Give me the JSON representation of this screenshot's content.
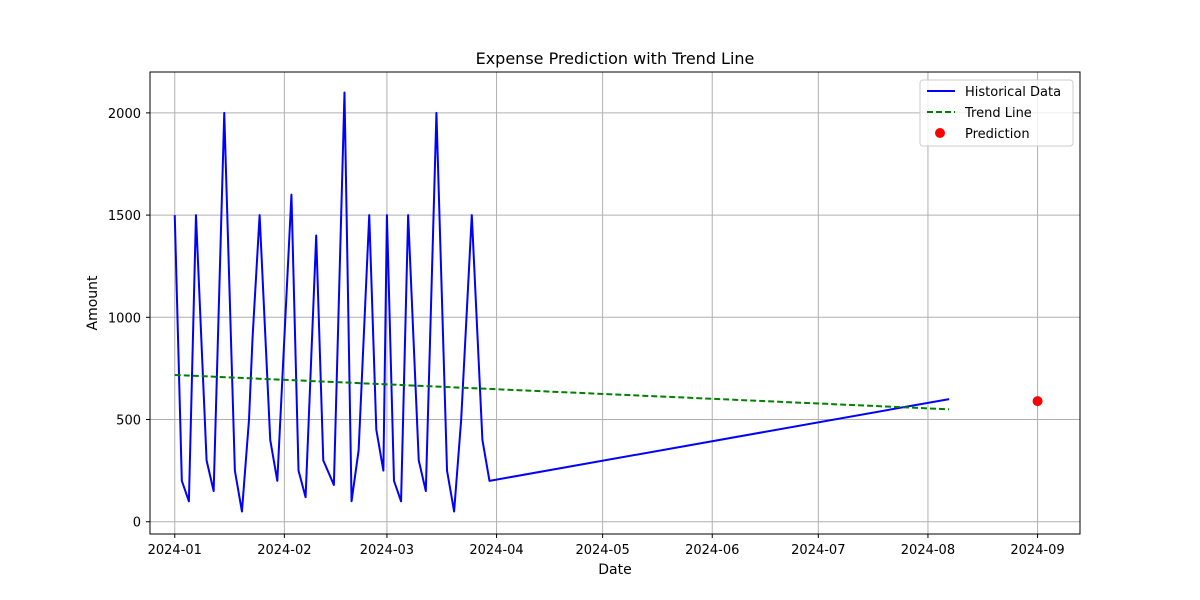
{
  "chart_data": {
    "type": "line",
    "title": "Expense Prediction with Trend Line",
    "xlabel": "Date",
    "ylabel": "Amount",
    "x_ticks": [
      "2024-01",
      "2024-02",
      "2024-03",
      "2024-04",
      "2024-05",
      "2024-06",
      "2024-07",
      "2024-08",
      "2024-09"
    ],
    "y_ticks": [
      0,
      500,
      1000,
      1500,
      2000
    ],
    "xlim": [
      "2023-12-25",
      "2024-09-13"
    ],
    "ylim": [
      -60,
      2200
    ],
    "grid": true,
    "legend_position": "top-right",
    "series": [
      {
        "name": "Historical Data",
        "style": "solid line",
        "color": "#0000ff",
        "points": [
          {
            "x": "2024-01-01",
            "y": 1500
          },
          {
            "x": "2024-01-03",
            "y": 200
          },
          {
            "x": "2024-01-05",
            "y": 100
          },
          {
            "x": "2024-01-07",
            "y": 1500
          },
          {
            "x": "2024-01-10",
            "y": 300
          },
          {
            "x": "2024-01-12",
            "y": 150
          },
          {
            "x": "2024-01-15",
            "y": 2000
          },
          {
            "x": "2024-01-18",
            "y": 250
          },
          {
            "x": "2024-01-20",
            "y": 50
          },
          {
            "x": "2024-01-22",
            "y": 500
          },
          {
            "x": "2024-01-23",
            "y": 900
          },
          {
            "x": "2024-01-25",
            "y": 1500
          },
          {
            "x": "2024-01-28",
            "y": 400
          },
          {
            "x": "2024-01-30",
            "y": 200
          },
          {
            "x": "2024-02-03",
            "y": 1600
          },
          {
            "x": "2024-02-05",
            "y": 250
          },
          {
            "x": "2024-02-07",
            "y": 120
          },
          {
            "x": "2024-02-10",
            "y": 1400
          },
          {
            "x": "2024-02-12",
            "y": 300
          },
          {
            "x": "2024-02-15",
            "y": 180
          },
          {
            "x": "2024-02-18",
            "y": 2100
          },
          {
            "x": "2024-02-20",
            "y": 100
          },
          {
            "x": "2024-02-22",
            "y": 350
          },
          {
            "x": "2024-02-25",
            "y": 1500
          },
          {
            "x": "2024-02-27",
            "y": 450
          },
          {
            "x": "2024-02-29",
            "y": 250
          },
          {
            "x": "2024-03-01",
            "y": 1500
          },
          {
            "x": "2024-03-03",
            "y": 200
          },
          {
            "x": "2024-03-05",
            "y": 100
          },
          {
            "x": "2024-03-07",
            "y": 1500
          },
          {
            "x": "2024-03-10",
            "y": 300
          },
          {
            "x": "2024-03-12",
            "y": 150
          },
          {
            "x": "2024-03-15",
            "y": 2000
          },
          {
            "x": "2024-03-18",
            "y": 250
          },
          {
            "x": "2024-03-20",
            "y": 50
          },
          {
            "x": "2024-03-22",
            "y": 500
          },
          {
            "x": "2024-03-25",
            "y": 1500
          },
          {
            "x": "2024-03-28",
            "y": 400
          },
          {
            "x": "2024-03-30",
            "y": 200
          },
          {
            "x": "2024-08-07",
            "y": 600
          }
        ]
      },
      {
        "name": "Trend Line",
        "style": "dashed line",
        "color": "#008000",
        "points": [
          {
            "x": "2024-01-01",
            "y": 718
          },
          {
            "x": "2024-08-07",
            "y": 550
          }
        ]
      },
      {
        "name": "Prediction",
        "style": "marker",
        "color": "#ff0000",
        "points": [
          {
            "x": "2024-09-01",
            "y": 590
          }
        ]
      }
    ]
  }
}
